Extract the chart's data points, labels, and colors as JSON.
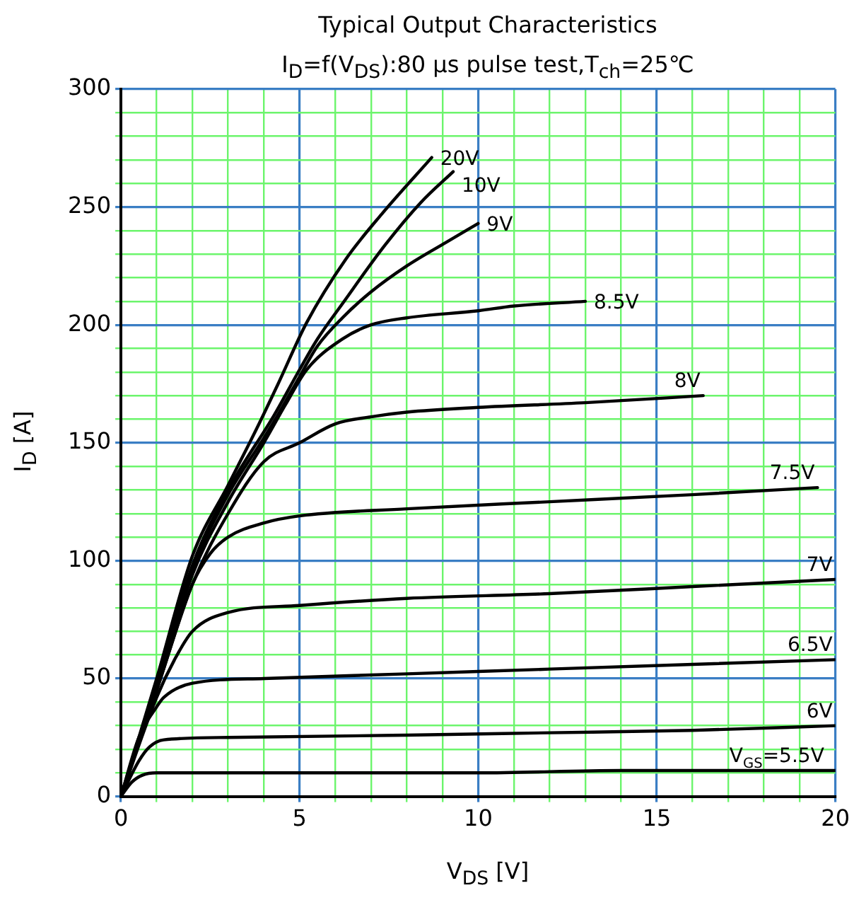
{
  "chart_data": {
    "type": "line",
    "title": "Typical Output Characteristics",
    "subtitle": "I$_{D}$=f(V$_{DS}$):80 μs pulse test,T$_{ch}$=25℃",
    "xlabel": "V$_{DS}$ [V]",
    "ylabel": "I$_{D}$ [A]",
    "xlim": [
      0,
      20
    ],
    "ylim": [
      0,
      300
    ],
    "xticks": [
      0,
      {
        "value": 1,
        "label": null
      },
      {
        "value": 2,
        "label": null
      },
      {
        "value": 3,
        "label": null
      },
      {
        "value": 4,
        "label": null
      },
      5,
      {
        "value": 6,
        "label": null
      },
      {
        "value": 7,
        "label": null
      },
      {
        "value": 8,
        "label": null
      },
      {
        "value": 9,
        "label": null
      },
      10,
      {
        "value": 11,
        "label": null
      },
      {
        "value": 12,
        "label": null
      },
      {
        "value": 13,
        "label": null
      },
      {
        "value": 14,
        "label": null
      },
      15,
      {
        "value": 16,
        "label": null
      },
      {
        "value": 17,
        "label": null
      },
      {
        "value": 18,
        "label": null
      },
      {
        "value": 19,
        "label": null
      },
      20
    ],
    "yticks": [
      0,
      {
        "value": 10,
        "label": null
      },
      {
        "value": 20,
        "label": null
      },
      {
        "value": 30,
        "label": null
      },
      {
        "value": 40,
        "label": null
      },
      50,
      {
        "value": 60,
        "label": null
      },
      {
        "value": 70,
        "label": null
      },
      {
        "value": 80,
        "label": null
      },
      {
        "value": 90,
        "label": null
      },
      100,
      {
        "value": 110,
        "label": null
      },
      {
        "value": 120,
        "label": null
      },
      {
        "value": 130,
        "label": null
      },
      {
        "value": 140,
        "label": null
      },
      150,
      {
        "value": 160,
        "label": null
      },
      {
        "value": 170,
        "label": null
      },
      {
        "value": 180,
        "label": null
      },
      {
        "value": 190,
        "label": null
      },
      200,
      {
        "value": 210,
        "label": null
      },
      {
        "value": 220,
        "label": null
      },
      {
        "value": 230,
        "label": null
      },
      {
        "value": 240,
        "label": null
      },
      250,
      {
        "value": 260,
        "label": null
      },
      {
        "value": 270,
        "label": null
      },
      {
        "value": 280,
        "label": null
      },
      {
        "value": 290,
        "label": null
      },
      300
    ],
    "grid": true,
    "legend": false,
    "marker": "none",
    "line_style": "solid",
    "series": [
      {
        "name": "20V",
        "color": "#000000",
        "x": [
          0,
          1,
          2,
          3,
          3.8,
          4.4,
          5.2,
          6.3,
          7.3,
          8.7
        ],
        "values": [
          0,
          50,
          102,
          132,
          156,
          175,
          201,
          228,
          247,
          271
        ]
      },
      {
        "name": "10V",
        "color": "#000000",
        "x": [
          0,
          1,
          2,
          3,
          4.3,
          5,
          5.5,
          6.2,
          7.4,
          8.4,
          9.3
        ],
        "values": [
          0,
          48,
          98,
          130,
          162,
          181,
          194,
          209,
          234,
          252,
          265
        ]
      },
      {
        "name": "9V",
        "color": "#000000",
        "x": [
          0,
          1,
          2,
          3,
          4,
          4.4,
          5,
          5.5,
          6.2,
          7,
          8,
          9.1,
          10
        ],
        "values": [
          0,
          47,
          96,
          128,
          152,
          162,
          178,
          191,
          203,
          214,
          225,
          235,
          243
        ]
      },
      {
        "name": "8.5V",
        "color": "#000000",
        "x": [
          0,
          1,
          2,
          3,
          4,
          4.6,
          5.2,
          6.2,
          7,
          8,
          10,
          11,
          13
        ],
        "values": [
          0,
          46,
          94,
          125,
          150,
          166,
          181,
          194,
          200,
          203,
          206,
          208,
          210
        ]
      },
      {
        "name": "8V",
        "color": "#000000",
        "x": [
          0,
          1,
          2,
          3,
          4,
          5,
          6,
          7,
          8,
          10,
          13,
          16.3
        ],
        "values": [
          0,
          45,
          90,
          120,
          142,
          150,
          158,
          161,
          163,
          165,
          167,
          170
        ]
      },
      {
        "name": "7.5V",
        "color": "#000000",
        "x": [
          0,
          1,
          2,
          2.5,
          3,
          4,
          5,
          8,
          12,
          16,
          19.5
        ],
        "values": [
          0,
          45,
          90,
          103,
          110,
          116,
          119,
          122,
          125,
          128,
          131
        ]
      },
      {
        "name": "7V",
        "color": "#000000",
        "x": [
          0,
          1,
          1.5,
          2,
          3,
          5,
          8,
          12,
          16,
          20
        ],
        "values": [
          0,
          42,
          58,
          70,
          78,
          81,
          84,
          86,
          89,
          92
        ]
      },
      {
        "name": "6.5V",
        "color": "#000000",
        "x": [
          0,
          0.5,
          1,
          1.2,
          2,
          4,
          8,
          12,
          16,
          20
        ],
        "values": [
          0,
          25,
          38,
          42,
          48,
          50,
          52,
          54,
          56,
          58
        ]
      },
      {
        "name": "6V",
        "color": "#000000",
        "x": [
          0,
          0.5,
          0.8,
          1.2,
          3,
          8,
          12,
          16,
          20
        ],
        "values": [
          0,
          15,
          21,
          24,
          25,
          26,
          27,
          28,
          30
        ]
      },
      {
        "name": "V$_{GS}$=5.5V",
        "color": "#000000",
        "x": [
          0,
          0.3,
          0.6,
          1,
          10,
          14,
          20
        ],
        "values": [
          0,
          6,
          9,
          10,
          10,
          11,
          11
        ]
      }
    ]
  }
}
